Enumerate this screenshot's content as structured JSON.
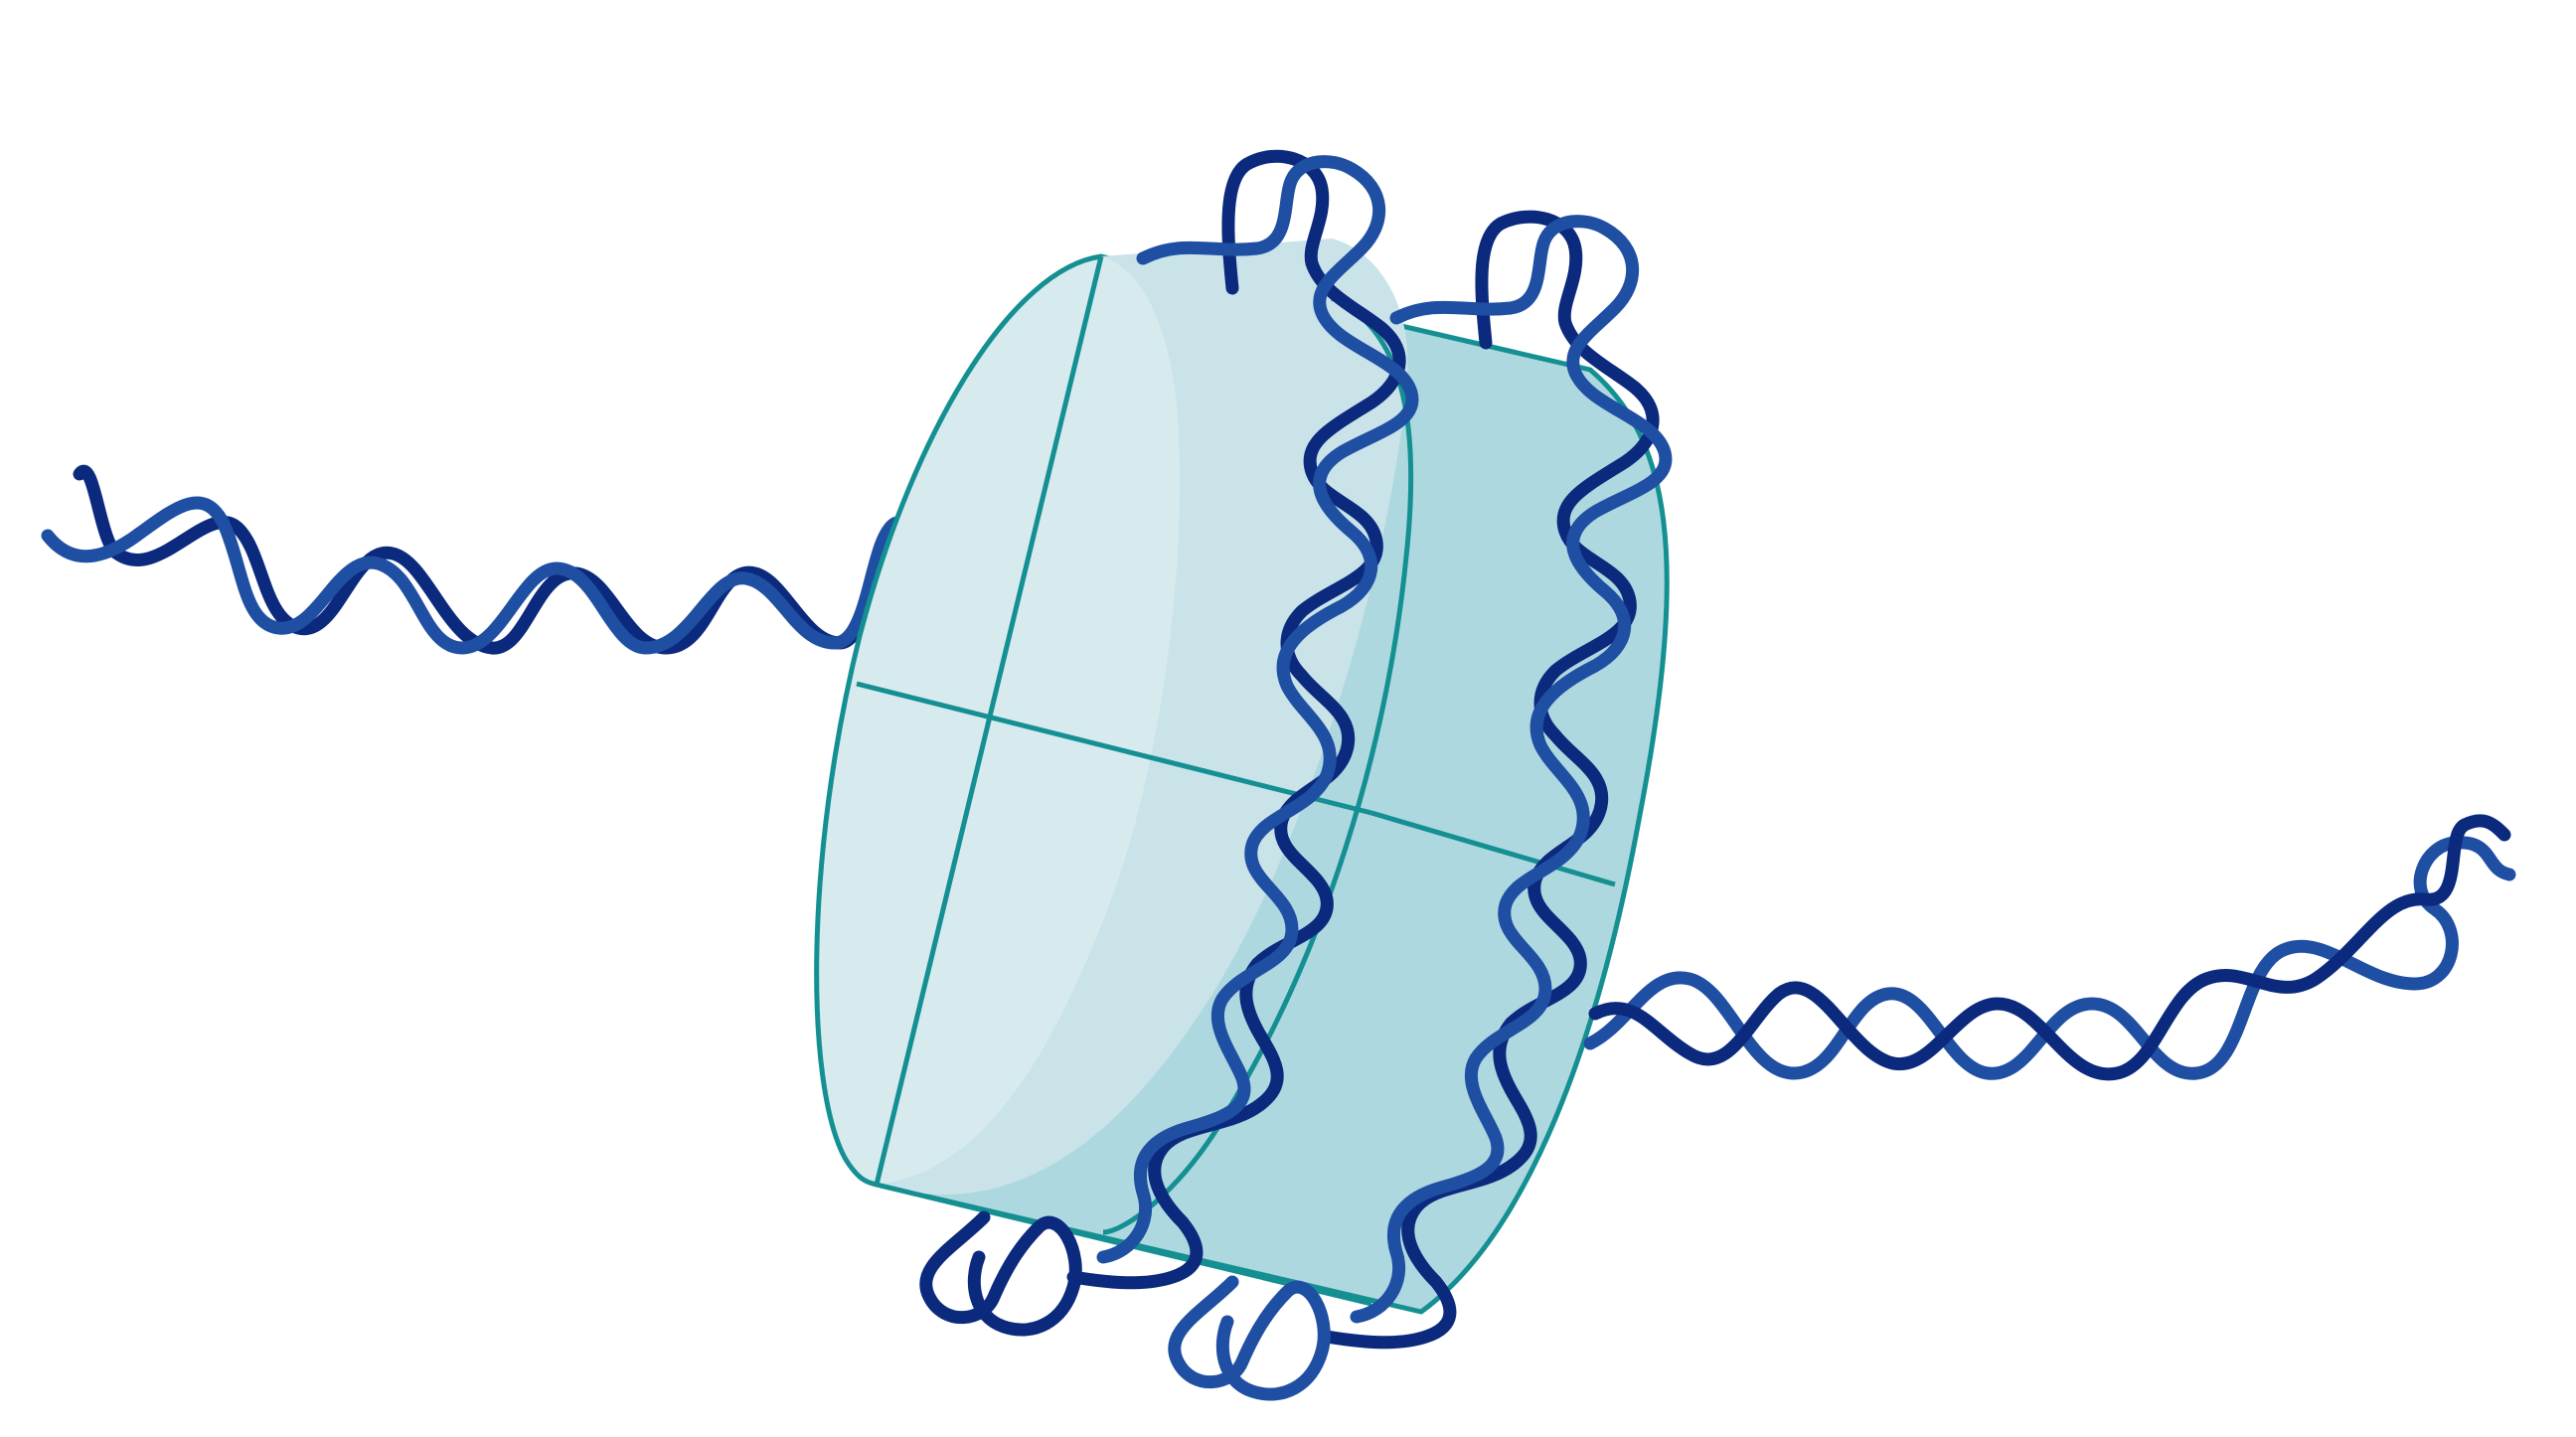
{
  "diagram": {
    "subject": "nucleosome",
    "parts": [
      {
        "id": "histone-core",
        "shape": "cylinder"
      },
      {
        "id": "dna-double-helix",
        "shape": "double-helix-coil"
      },
      {
        "id": "linker-dna-left",
        "shape": "double-helix"
      },
      {
        "id": "linker-dna-right",
        "shape": "double-helix"
      }
    ],
    "dna_turns_around_core": 2
  },
  "colors": {
    "background": "#ffffff",
    "dna_dark": "#0b2a7d",
    "dna_light": "#1f4fa3",
    "core_front_face": "#c9e3e9",
    "core_front_highlight": "#d7ebef",
    "core_side": "#aed8df",
    "core_outline": "#148f92"
  }
}
